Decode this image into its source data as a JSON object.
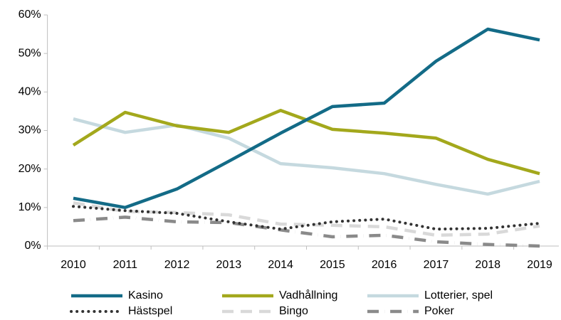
{
  "chart_data": {
    "type": "line",
    "categories": [
      "2010",
      "2011",
      "2012",
      "2013",
      "2014",
      "2015",
      "2016",
      "2017",
      "2018",
      "2019"
    ],
    "series": [
      {
        "name": "Kasino",
        "color": "#136b87",
        "style": "solid",
        "values": [
          12.4,
          10,
          14.8,
          22,
          29.3,
          36.2,
          37.1,
          48,
          56.3,
          53.5
        ]
      },
      {
        "name": "Vadhållning",
        "color": "#a3a81c",
        "style": "solid",
        "values": [
          26.2,
          34.7,
          31.2,
          29.5,
          35.2,
          30.3,
          29.3,
          28,
          22.5,
          18.8
        ]
      },
      {
        "name": "Lotterier, spel",
        "color": "#c5d9df",
        "style": "solid",
        "values": [
          33,
          29.5,
          31.4,
          28,
          21.4,
          20.3,
          18.8,
          16,
          13.5,
          16.8
        ]
      },
      {
        "name": "Hästspel",
        "color": "#333333",
        "style": "dotted",
        "values": [
          10.3,
          9.2,
          8.5,
          6.3,
          4.4,
          6.3,
          7,
          4.4,
          4.6,
          5.9
        ]
      },
      {
        "name": "Bingo",
        "color": "#d9d9d9",
        "style": "dashed",
        "values": [
          11.2,
          9,
          8.7,
          8.1,
          5.7,
          5.4,
          5,
          2.8,
          3.1,
          5.2
        ]
      },
      {
        "name": "Poker",
        "color": "#8a8a8a",
        "style": "dashdot",
        "values": [
          6.6,
          7.5,
          6.3,
          6.1,
          4.2,
          2.4,
          2.8,
          1.1,
          0.4,
          0
        ]
      }
    ],
    "ylim": [
      0,
      60
    ],
    "yticks": [
      {
        "value": 0,
        "label": "0%"
      },
      {
        "value": 10,
        "label": "10%"
      },
      {
        "value": 20,
        "label": "20%"
      },
      {
        "value": 30,
        "label": "30%"
      },
      {
        "value": 40,
        "label": "40%"
      },
      {
        "value": 50,
        "label": "50%"
      },
      {
        "value": 60,
        "label": "60%"
      }
    ]
  }
}
